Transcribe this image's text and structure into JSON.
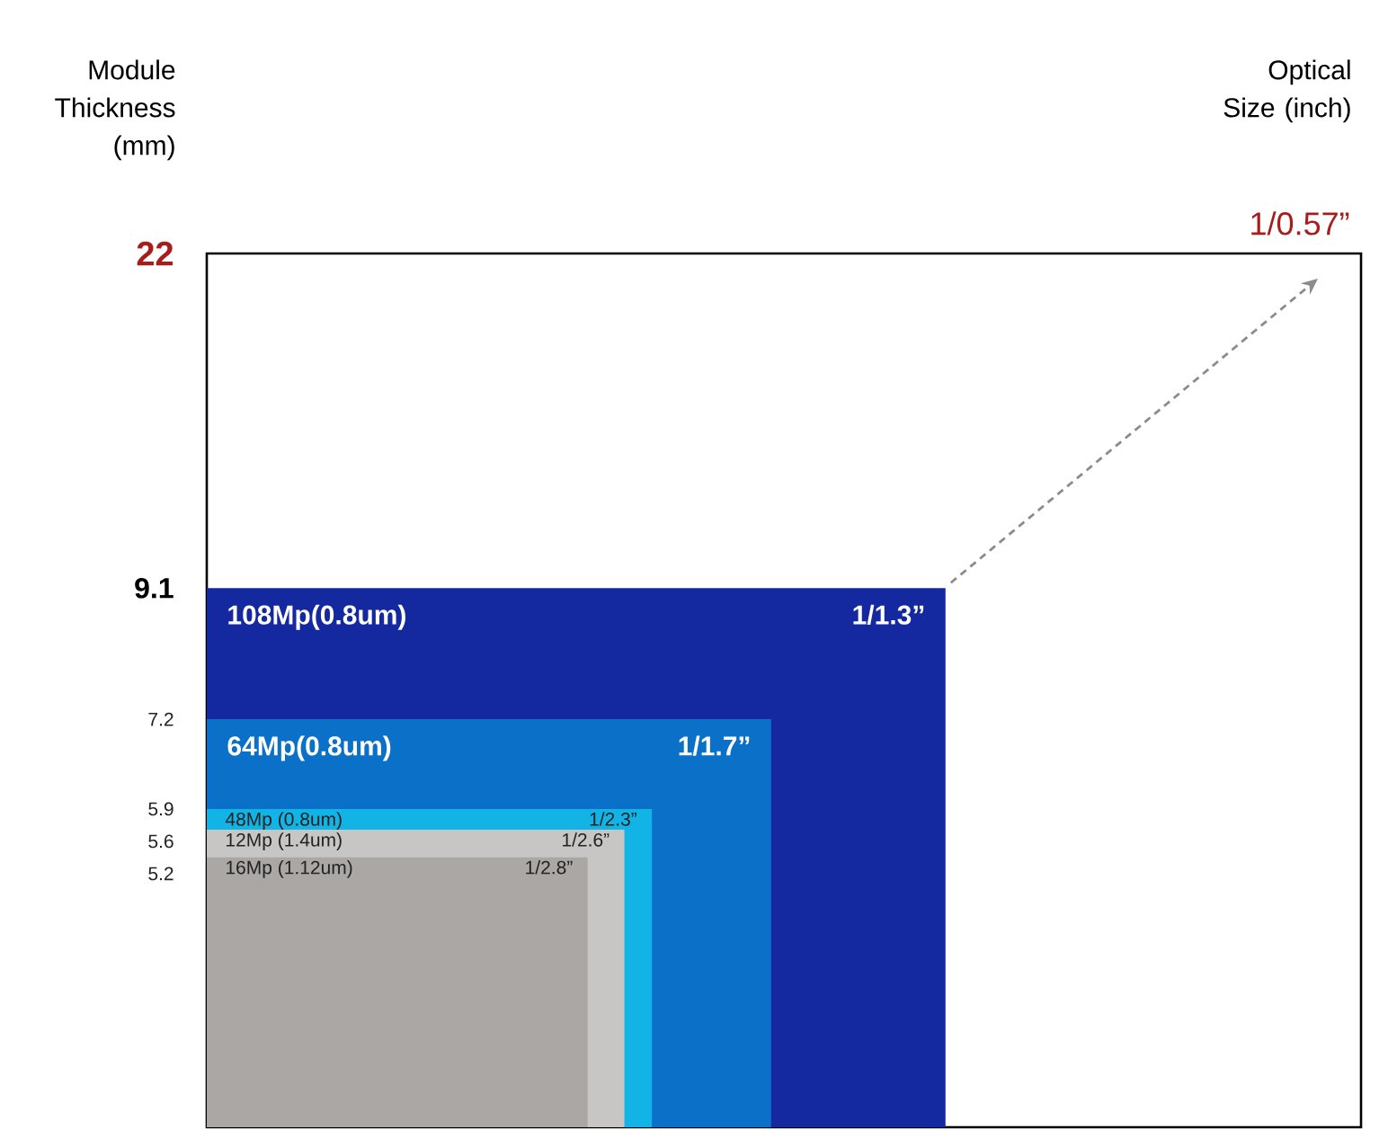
{
  "chart_data": {
    "type": "other",
    "ylabel": "Module Thickness (mm)",
    "xlabel": "Optical Size (inch)",
    "categories": [
      null,
      "108Mp(0.8um)",
      "64Mp(0.8um)",
      "48Mp (0.8um)",
      "12Mp (1.4um)",
      "16Mp (1.12um)"
    ],
    "values": [
      22,
      9.1,
      7.2,
      5.9,
      5.6,
      5.2
    ],
    "colors": [
      "#ffffff",
      "#1428a0",
      "#0a70c8",
      "#12b4e6",
      "#c8c6c4",
      "#aba7a4"
    ],
    "data_labels": true,
    "annotations": [
      "1/0.57”",
      {
        "text": "1/1.3”",
        "x": "108Mp(0.8um)"
      },
      {
        "text": "1/1.7”",
        "x": "64Mp(0.8um)"
      },
      {
        "text": "1/2.3”",
        "x": "48Mp (0.8um)"
      },
      {
        "text": "1/2.6”",
        "x": "12Mp (1.4um)"
      },
      {
        "text": "1/2.8”",
        "x": "16Mp (1.12um)"
      }
    ]
  }
}
